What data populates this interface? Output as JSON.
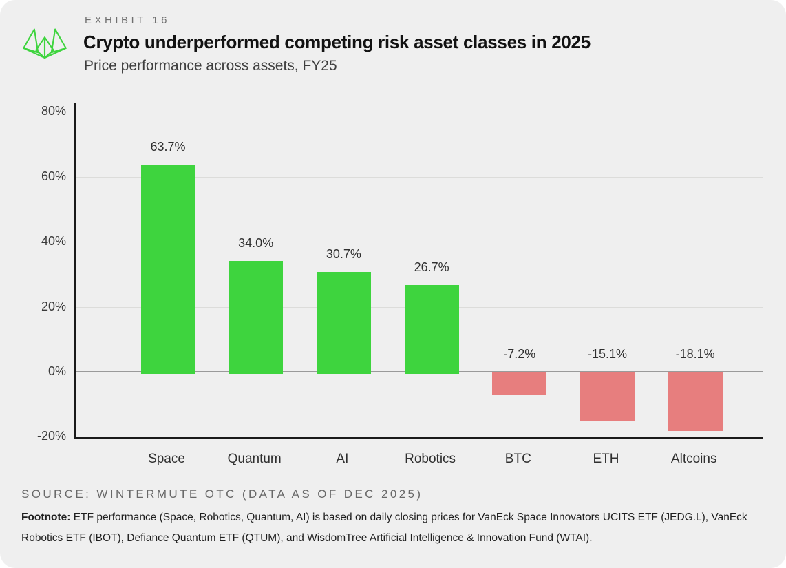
{
  "header": {
    "exhibit_label": "EXHIBIT 16",
    "title": "Crypto underperformed competing risk asset classes in 2025",
    "subtitle": "Price performance across assets, FY25",
    "logo_name": "wintermute-logo",
    "logo_color": "#3ed43e"
  },
  "chart_data": {
    "type": "bar",
    "title": "Crypto underperformed competing risk asset classes in 2025",
    "subtitle": "Price performance across assets, FY25",
    "categories": [
      "Space",
      "Quantum",
      "AI",
      "Robotics",
      "BTC",
      "ETH",
      "Altcoins"
    ],
    "values": [
      63.7,
      34.0,
      30.7,
      26.7,
      -7.2,
      -15.1,
      -18.1
    ],
    "value_labels": [
      "63.7%",
      "34.0%",
      "30.7%",
      "26.7%",
      "-7.2%",
      "-15.1%",
      "-18.1%"
    ],
    "xlabel": "",
    "ylabel": "",
    "ylim": [
      -20,
      80
    ],
    "y_ticks": [
      80,
      60,
      40,
      20,
      0,
      -20
    ],
    "y_tick_labels": [
      "80%",
      "60%",
      "40%",
      "20%",
      "0%",
      "-20%"
    ],
    "grid": true,
    "legend": false,
    "positive_color": "#3ed43e",
    "negative_color": "#e77e7e",
    "gridline_color": "#dcdcda",
    "zero_line_color": "#9a9a9a",
    "axis_color": "#1a1a1a"
  },
  "footer": {
    "source": "SOURCE: WINTERMUTE OTC (DATA AS OF DEC 2025)",
    "footnote_label": "Footnote:",
    "footnote_text": " ETF performance (Space, Robotics, Quantum, AI) is based on daily closing prices for VanEck Space Innovators UCITS ETF (JEDG.L), VanEck Robotics ETF (IBOT), Defiance Quantum ETF (QTUM), and WisdomTree Artificial Intelligence & Innovation Fund (WTAI)."
  }
}
